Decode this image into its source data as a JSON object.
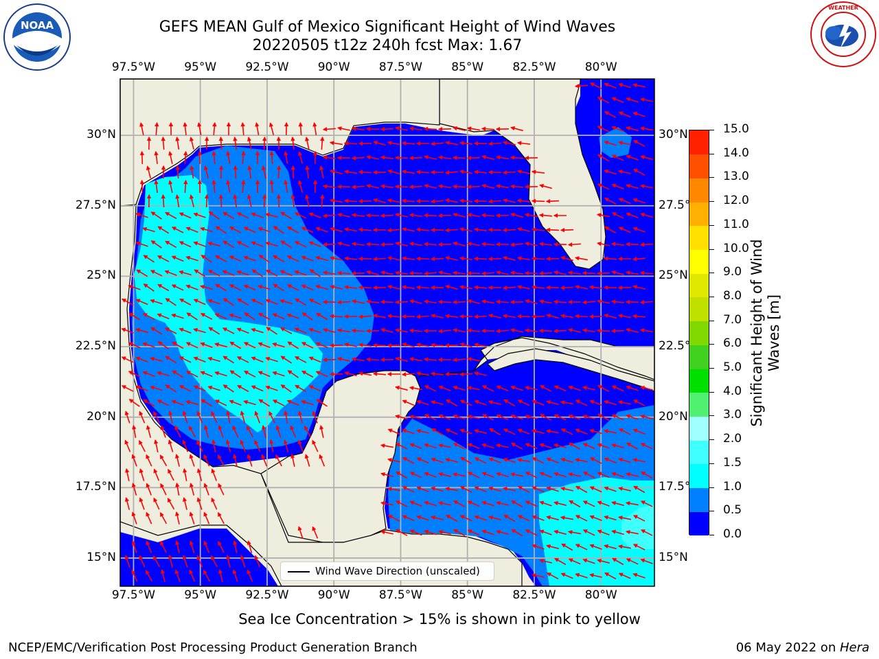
{
  "header": {
    "title_line1": "GEFS MEAN Gulf of Mexico Significant Height of Wind Waves",
    "title_line2": "20220505 t12z 240h fcst   Max: 1.67"
  },
  "logos": {
    "noaa": "NOAA",
    "noaa_ring": "NATIONAL OCEANIC AND ATMOSPHERIC ADMINISTRATION · U.S. DEPARTMENT OF COMMERCE",
    "nws_ring": "NATIONAL WEATHER SERVICE"
  },
  "map": {
    "lon_ticks": [
      "97.5°W",
      "95°W",
      "92.5°W",
      "90°W",
      "87.5°W",
      "85°W",
      "82.5°W",
      "80°W"
    ],
    "lon_values": [
      -97.5,
      -95,
      -92.5,
      -90,
      -87.5,
      -85,
      -82.5,
      -80
    ],
    "lat_ticks": [
      "30°N",
      "27.5°N",
      "25°N",
      "22.5°N",
      "20°N",
      "17.5°N",
      "15°N"
    ],
    "lat_values": [
      30,
      27.5,
      25,
      22.5,
      20,
      17.5,
      15
    ],
    "extent_lon": [
      -98,
      -78
    ],
    "extent_lat": [
      14,
      32
    ],
    "gridlines": true,
    "colors": {
      "land": "#efedde",
      "arrow": "#ff0000",
      "grid": "#b0b0b0",
      "coast": "#000000"
    }
  },
  "legend": {
    "label": "Wind Wave Direction (unscaled)",
    "placement": "lower-center"
  },
  "colorbar": {
    "title": "Significant Height of Wind Waves [m]",
    "labels": [
      "0.0",
      "0.5",
      "1.0",
      "1.5",
      "2.0",
      "3.0",
      "4.0",
      "5.0",
      "6.0",
      "7.0",
      "8.0",
      "9.0",
      "10.0",
      "11.0",
      "12.0",
      "13.0",
      "14.0",
      "15.0"
    ],
    "colors": [
      "#0000ff",
      "#0080ff",
      "#00ffff",
      "#40ffff",
      "#a0ffff",
      "#50f070",
      "#00e000",
      "#40d020",
      "#80d800",
      "#c0e000",
      "#e0e800",
      "#ffff00",
      "#ffe000",
      "#ffb000",
      "#ff8800",
      "#ff5000",
      "#ff2000"
    ]
  },
  "footer": {
    "note": "Sea Ice Concentration > 15% is shown in pink to yellow",
    "left": "NCEP/EMC/Verification Post Processing Product Generation Branch",
    "right_prefix": "06 May 2022 on ",
    "right_machine": "Hera"
  }
}
